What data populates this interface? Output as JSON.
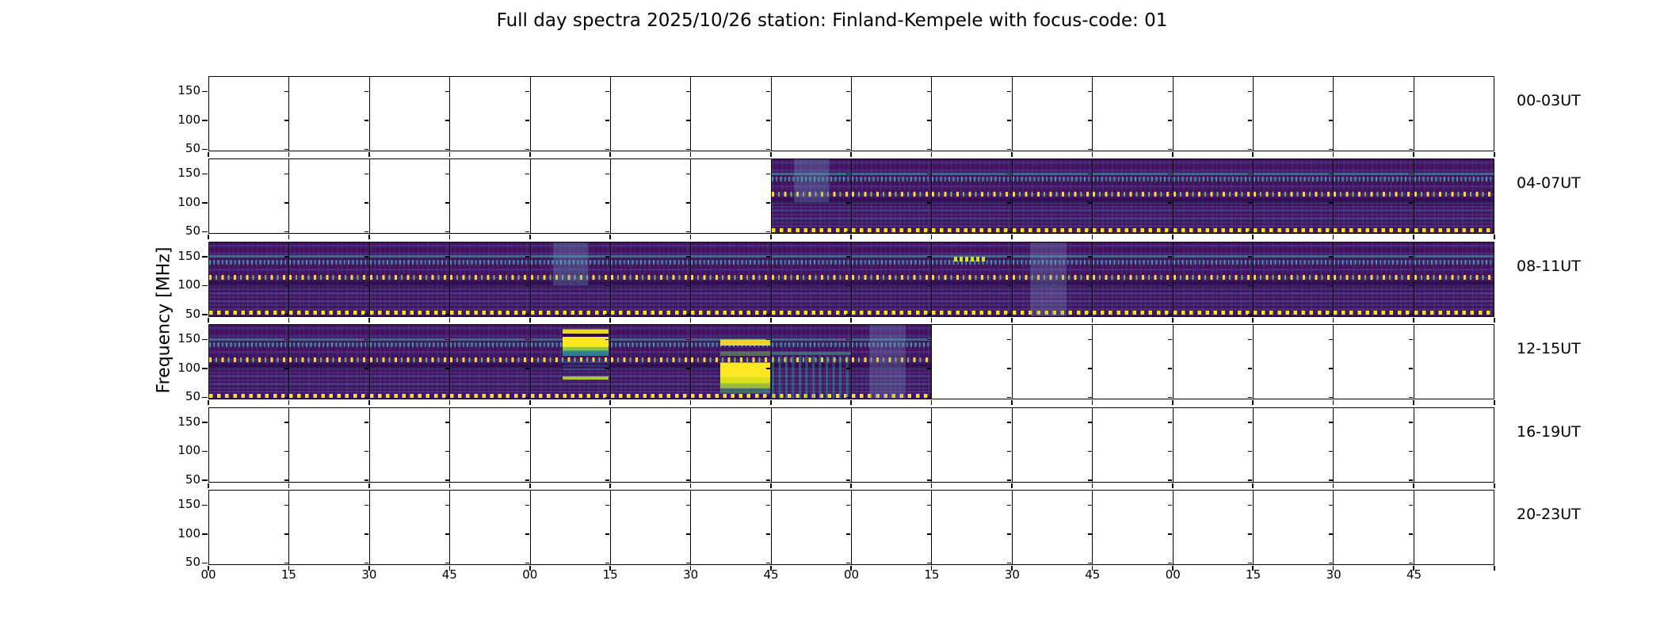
{
  "chart_data": {
    "type": "heatmap",
    "title": "Full day spectra 2025/10/26 station: Finland-Kempele with focus-code: 01",
    "date": "2025/10/26",
    "station": "Finland-Kempele",
    "focus_code": "01",
    "ylabel": "Frequency [MHz]",
    "y_ticks": [
      "150",
      "100",
      "50"
    ],
    "y_tick_values": [
      150,
      100,
      50
    ],
    "freq_axis_range_mhz": [
      46,
      176
    ],
    "x_tick_labels": [
      "00",
      "15",
      "30",
      "45",
      "00",
      "15",
      "30",
      "45",
      "00",
      "15",
      "30",
      "45",
      "00",
      "15",
      "30",
      "45"
    ],
    "minutes_per_cell": 15,
    "cells_per_row": 16,
    "hours_per_row": 4,
    "colormap": "viridis",
    "colors": {
      "background": "#440154",
      "band_purple": "#482878",
      "band_blue": "#3b528b",
      "teal": "#21918c",
      "green": "#35b779",
      "bright_green": "#b5de2b",
      "yellow": "#fde725",
      "axis": "#000000",
      "empty": "#ffffff"
    },
    "rows": [
      {
        "label": "00-03UT",
        "filled_cells": [],
        "coverage": "no data"
      },
      {
        "label": "04-07UT",
        "filled_cells": [
          [
            7,
            15
          ]
        ],
        "coverage": "data from 05:45 to 08:00",
        "specials": {
          "7": "lightpatch-top"
        }
      },
      {
        "label": "08-11UT",
        "filled_cells": [
          [
            0,
            15
          ]
        ],
        "coverage": "data from 08:00 to 12:00",
        "specials": {
          "4": "lightpatch-top",
          "9": "brightdash-top",
          "10": "lightpatch"
        }
      },
      {
        "label": "12-15UT",
        "filled_cells": [
          [
            0,
            8
          ]
        ],
        "coverage": "data from 12:00 to 14:15; strong bursts ~13:00-13:15 and ~13:30-13:45",
        "specials": {
          "4": "burst-upper",
          "6": "burst-full",
          "7": "streaks",
          "8": "lightpatch"
        }
      },
      {
        "label": "16-19UT",
        "filled_cells": [],
        "coverage": "no data"
      },
      {
        "label": "20-23UT",
        "filled_cells": [],
        "coverage": "no data"
      }
    ],
    "persistent_features": [
      "dotted yellow line near 47 MHz along bottom of all recorded spectra",
      "dashed teal band near 140-150 MHz",
      "dashed green/yellow interference line near 105-110 MHz"
    ]
  }
}
